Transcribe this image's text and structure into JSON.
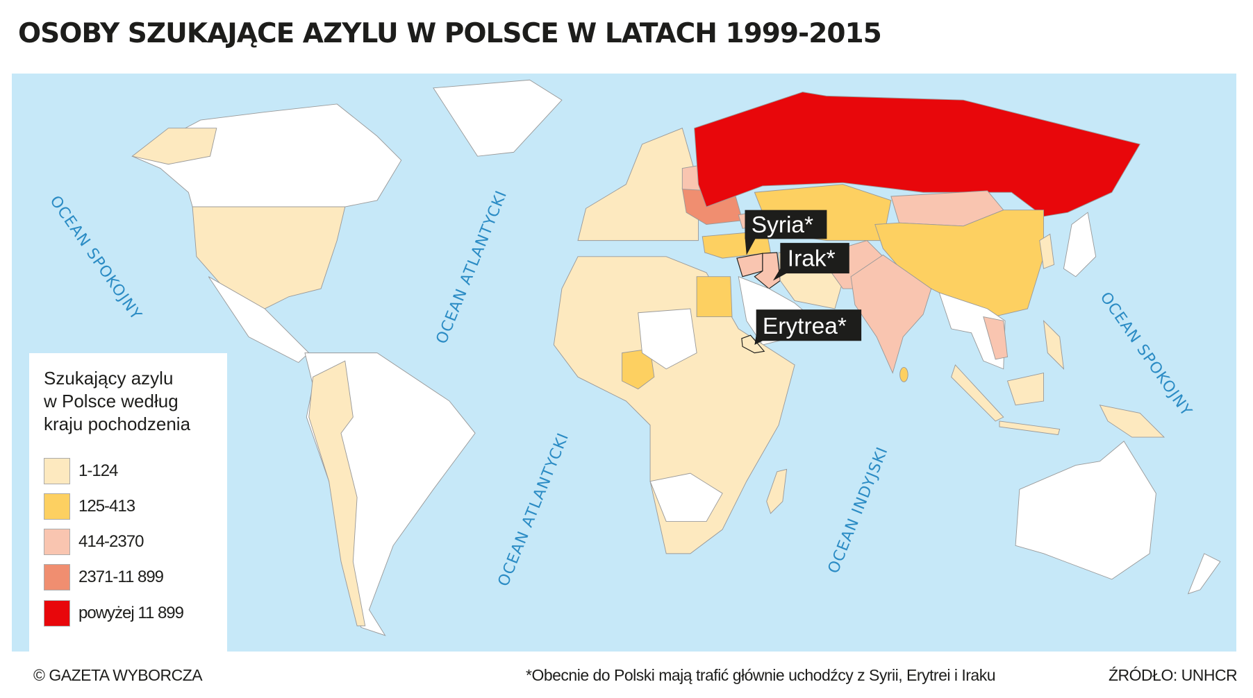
{
  "title": "OSOBY SZUKAJĄCE AZYLU W POLSCE W LATACH 1999-2015",
  "legend": {
    "title_lines": [
      "Szukający azylu",
      "w Polsce według",
      "kraju pochodzenia"
    ],
    "items": [
      {
        "label": "1-124",
        "color": "#fde9bf"
      },
      {
        "label": "125-413",
        "color": "#fdd061"
      },
      {
        "label": "414-2370",
        "color": "#f9c5b0"
      },
      {
        "label": "2371-11 899",
        "color": "#f08e70"
      },
      {
        "label": "powyżej 11 899",
        "color": "#e8070b"
      }
    ]
  },
  "oceans": {
    "pacific_west": "OCEAN SPOKOJNY",
    "atlantic_north": "OCEAN ATLANTYCKI",
    "atlantic_south": "OCEAN ATLANTYCKI",
    "indian": "OCEAN INDYJSKI",
    "pacific_east": "OCEAN SPOKOJNY"
  },
  "callouts": {
    "syria": "Syria*",
    "iraq": "Irak*",
    "eritrea": "Erytrea*"
  },
  "colors": {
    "ocean": "#c6e8f8",
    "no_data": "#ffffff"
  },
  "footer": {
    "copyright": "© GAZETA WYBORCZA",
    "note": "*Obecnie do Polski mają trafić głównie uchodźcy z Syrii, Erytrei i Iraku",
    "source": "ŹRÓDŁO: UNHCR"
  }
}
